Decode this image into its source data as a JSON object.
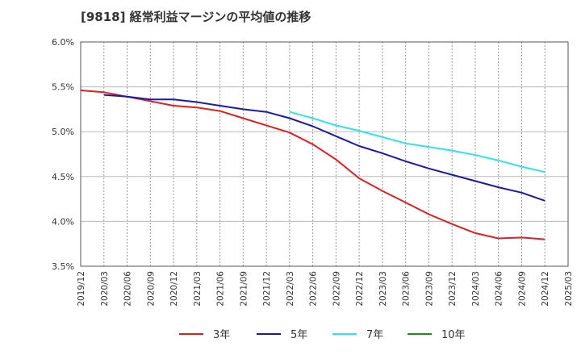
{
  "title": "[9818]  経常利益マージンの平均値の推移",
  "chart_data": {
    "type": "line",
    "title": "[9818]  経常利益マージンの平均値の推移",
    "xlabel": "",
    "ylabel": "",
    "ylim": [
      3.5,
      6.0
    ],
    "yticks": [
      "3.5%",
      "4.0%",
      "4.5%",
      "5.0%",
      "5.5%",
      "6.0%"
    ],
    "yticks_values": [
      3.5,
      4.0,
      4.5,
      5.0,
      5.5,
      6.0
    ],
    "xticks": [
      "2019/12",
      "2020/03",
      "2020/06",
      "2020/09",
      "2020/12",
      "2021/03",
      "2021/06",
      "2021/09",
      "2021/12",
      "2022/03",
      "2022/06",
      "2022/09",
      "2022/12",
      "2023/03",
      "2023/06",
      "2023/09",
      "2023/12",
      "2024/03",
      "2024/06",
      "2024/09",
      "2024/12",
      "2025/03"
    ],
    "grid": true,
    "legend_position": "bottom",
    "series": [
      {
        "name": "3年",
        "color": "#e02020",
        "x": [
          "2019/12",
          "2020/03",
          "2020/06",
          "2020/09",
          "2020/12",
          "2021/03",
          "2021/06",
          "2021/09",
          "2021/12",
          "2022/03",
          "2022/06",
          "2022/09",
          "2022/12",
          "2023/03",
          "2023/06",
          "2023/09",
          "2023/12",
          "2024/03",
          "2024/06",
          "2024/09",
          "2024/12"
        ],
        "values": [
          5.46,
          5.44,
          5.39,
          5.34,
          5.29,
          5.27,
          5.23,
          5.15,
          5.07,
          4.99,
          4.86,
          4.69,
          4.48,
          4.34,
          4.21,
          4.08,
          3.97,
          3.87,
          3.81,
          3.82,
          3.8
        ]
      },
      {
        "name": "5年",
        "color": "#1a1aa8",
        "x": [
          "2020/03",
          "2020/06",
          "2020/09",
          "2020/12",
          "2021/03",
          "2021/06",
          "2021/09",
          "2021/12",
          "2022/03",
          "2022/06",
          "2022/09",
          "2022/12",
          "2023/03",
          "2023/06",
          "2023/09",
          "2023/12",
          "2024/03",
          "2024/06",
          "2024/09",
          "2024/12"
        ],
        "values": [
          5.41,
          5.39,
          5.36,
          5.36,
          5.33,
          5.29,
          5.25,
          5.22,
          5.15,
          5.06,
          4.95,
          4.84,
          4.76,
          4.67,
          4.59,
          4.52,
          4.45,
          4.38,
          4.32,
          4.23
        ]
      },
      {
        "name": "7年",
        "color": "#33e0ee",
        "x": [
          "2022/03",
          "2022/06",
          "2022/09",
          "2022/12",
          "2023/03",
          "2023/06",
          "2023/09",
          "2023/12",
          "2024/03",
          "2024/06",
          "2024/09",
          "2024/12"
        ],
        "values": [
          5.22,
          5.15,
          5.07,
          5.01,
          4.94,
          4.87,
          4.83,
          4.79,
          4.74,
          4.68,
          4.61,
          4.55
        ]
      },
      {
        "name": "10年",
        "color": "#228b22",
        "x": [],
        "values": []
      }
    ]
  }
}
